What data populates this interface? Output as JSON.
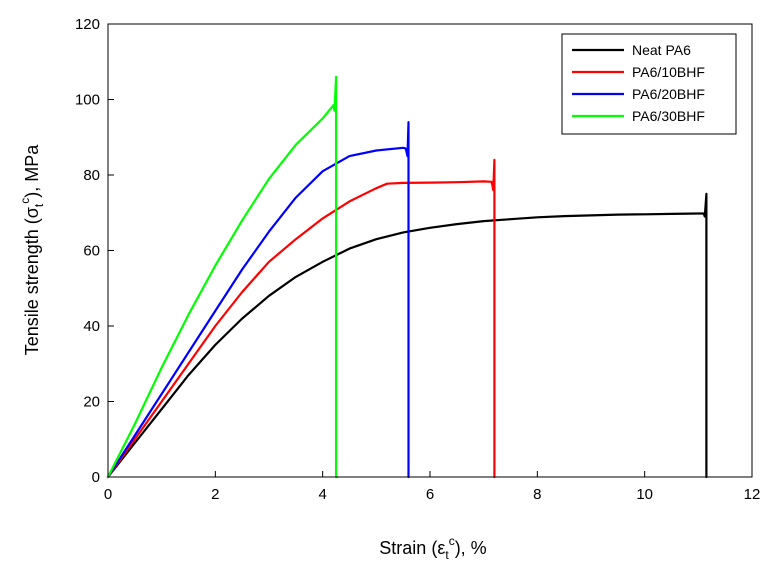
{
  "chart_data": {
    "type": "line",
    "title": "",
    "xlabel": "Strain (ε",
    "xlabel_sub": "t",
    "xlabel_sup": "c",
    "xlabel_tail": "), %",
    "ylabel": "Tensile strength (σ",
    "ylabel_sub": "t",
    "ylabel_sup": "c",
    "ylabel_tail": "), MPa",
    "xlim": [
      0,
      12
    ],
    "ylim": [
      0,
      120
    ],
    "xticks": [
      "0",
      "2",
      "4",
      "6",
      "8",
      "10",
      "12"
    ],
    "yticks": [
      "0",
      "20",
      "40",
      "60",
      "80",
      "100",
      "120"
    ],
    "grid": false,
    "legend_position": "top-right",
    "series": [
      {
        "name": "Neat PA6",
        "color": "#000000",
        "x": [
          0,
          0.5,
          1,
          1.5,
          2,
          2.5,
          3,
          3.5,
          4,
          4.5,
          5,
          5.5,
          6,
          6.5,
          7,
          7.5,
          8,
          8.5,
          9,
          9.5,
          10,
          10.5,
          11,
          11.1,
          11.12,
          11.15,
          11.15,
          11.15
        ],
        "y": [
          0,
          9,
          18,
          27,
          35,
          42,
          48,
          53,
          57,
          60.5,
          63,
          64.8,
          66,
          67,
          67.8,
          68.3,
          68.8,
          69.1,
          69.3,
          69.5,
          69.6,
          69.7,
          69.8,
          69.8,
          69,
          75,
          0,
          0
        ]
      },
      {
        "name": "PA6/10BHF",
        "color": "#ff0000",
        "x": [
          0,
          0.5,
          1,
          1.5,
          2,
          2.5,
          3,
          3.5,
          4,
          4.5,
          5,
          5.2,
          5.5,
          6,
          6.5,
          7,
          7.15,
          7.18,
          7.2,
          7.2
        ],
        "y": [
          0,
          10,
          20,
          30,
          40,
          49,
          57,
          63,
          68.5,
          73,
          76.5,
          77.7,
          77.9,
          78,
          78.1,
          78.3,
          78.2,
          76,
          84,
          0
        ]
      },
      {
        "name": "PA6/20BHF",
        "color": "#0000ff",
        "x": [
          0,
          0.5,
          1,
          1.5,
          2,
          2.5,
          3,
          3.5,
          4,
          4.5,
          5,
          5.5,
          5.55,
          5.58,
          5.6,
          5.6
        ],
        "y": [
          0,
          11,
          22,
          33,
          44,
          55,
          65,
          74,
          81,
          85,
          86.5,
          87.2,
          87,
          85,
          94,
          0
        ]
      },
      {
        "name": "PA6/30BHF",
        "color": "#00ff00",
        "x": [
          0,
          0.5,
          1,
          1.5,
          2,
          2.5,
          3,
          3.5,
          4,
          4.2,
          4.22,
          4.25,
          4.25,
          4.27
        ],
        "y": [
          0,
          14,
          29,
          43,
          56,
          68,
          79,
          88,
          95,
          98.5,
          97,
          106,
          0,
          0
        ]
      }
    ]
  }
}
